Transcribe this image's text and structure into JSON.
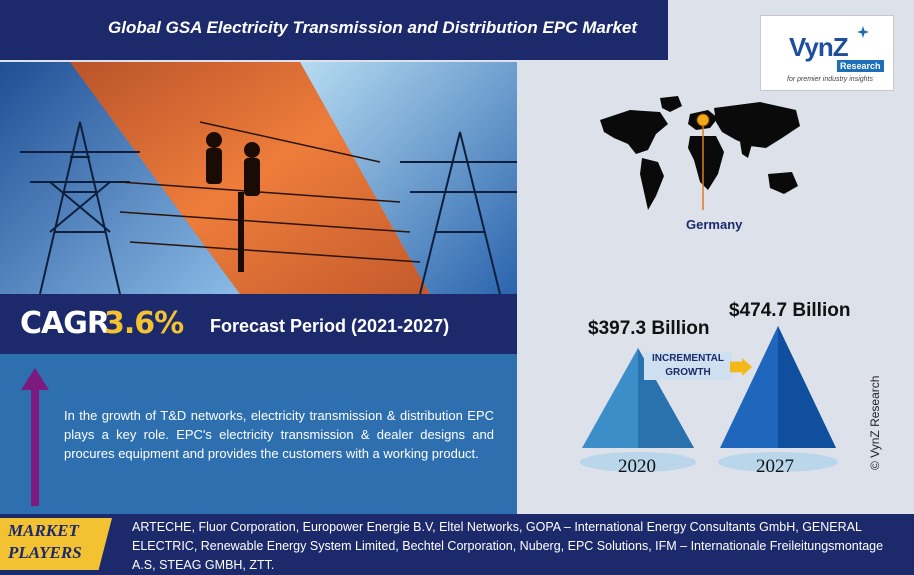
{
  "header": {
    "title": "Global GSA Electricity Transmission and Distribution EPC Market"
  },
  "logo": {
    "main": "VynZ",
    "badge": "Research",
    "tagline": "for premier industry insights"
  },
  "cagr": {
    "label": "CAGR",
    "value": "3.6%",
    "forecast": "Forecast Period (2021-2027)"
  },
  "description": "In the growth of T&D networks, electricity transmission & distribution EPC plays a key role. EPC's electricity transmission & dealer designs and procures equipment and provides the customers with a working product.",
  "map": {
    "highlight_label": "Germany"
  },
  "market": {
    "value_2020": "$397.3 Billion",
    "value_2027": "$474.7 Billion",
    "year_2020": "2020",
    "year_2027": "2027",
    "growth_label_line1": "INCREMENTAL",
    "growth_label_line2": "GROWTH"
  },
  "copyright": "© VynZ Research",
  "players": {
    "tag_line1": "MARKET",
    "tag_line2": "PLAYERS",
    "list": "ARTECHE, Fluor Corporation, Europower Energie B.V, Eltel Networks, GOPA – International Energy Consultants GmbH, GENERAL ELECTRIC, Renewable Energy System Limited, Bechtel Corporation, Nuberg, EPC Solutions, IFM – Internationale Freileitungsmontage A.S, STEAG GMBH, ZTT."
  },
  "colors": {
    "navy": "#1c2a6b",
    "gold": "#f3c232",
    "panel_blue": "#2e6fb0",
    "arrow_purple": "#7d1a7f"
  }
}
